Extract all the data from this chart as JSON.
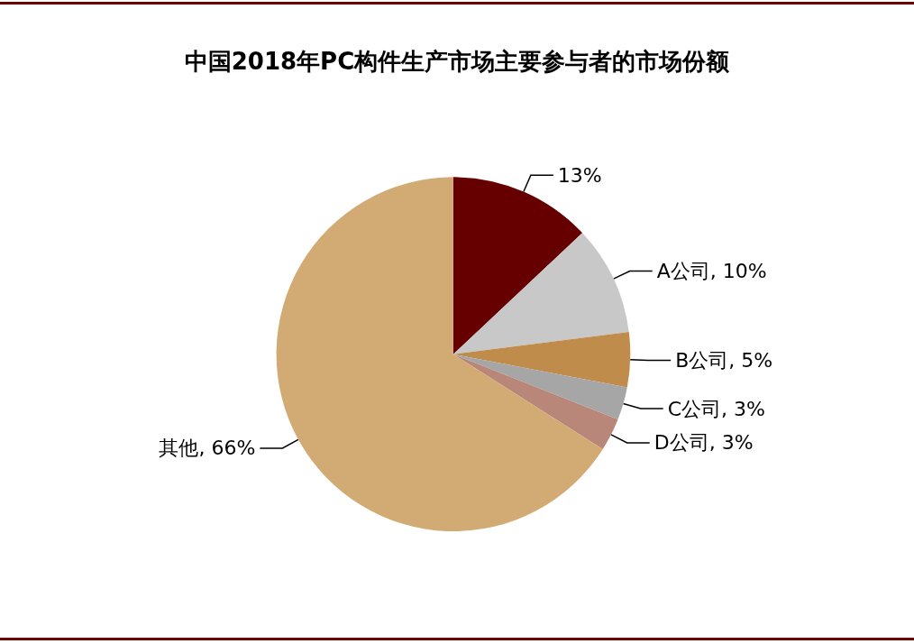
{
  "chart_data": {
    "type": "pie",
    "title": "中国2018年PC构件生产市场主要参与者的市场份额",
    "categories": [
      null,
      "A公司",
      "B公司",
      "C公司",
      "D公司",
      "其他"
    ],
    "values": [
      13,
      10,
      5,
      3,
      3,
      66
    ],
    "value_labels": [
      "13%",
      "10%",
      "5%",
      "3%",
      "3%",
      "66%"
    ],
    "colors": [
      "#660000",
      "#c8c8c8",
      "#bf8c4c",
      "#a6a6a6",
      "#b8877a",
      "#d2aa73"
    ],
    "legend": false
  }
}
